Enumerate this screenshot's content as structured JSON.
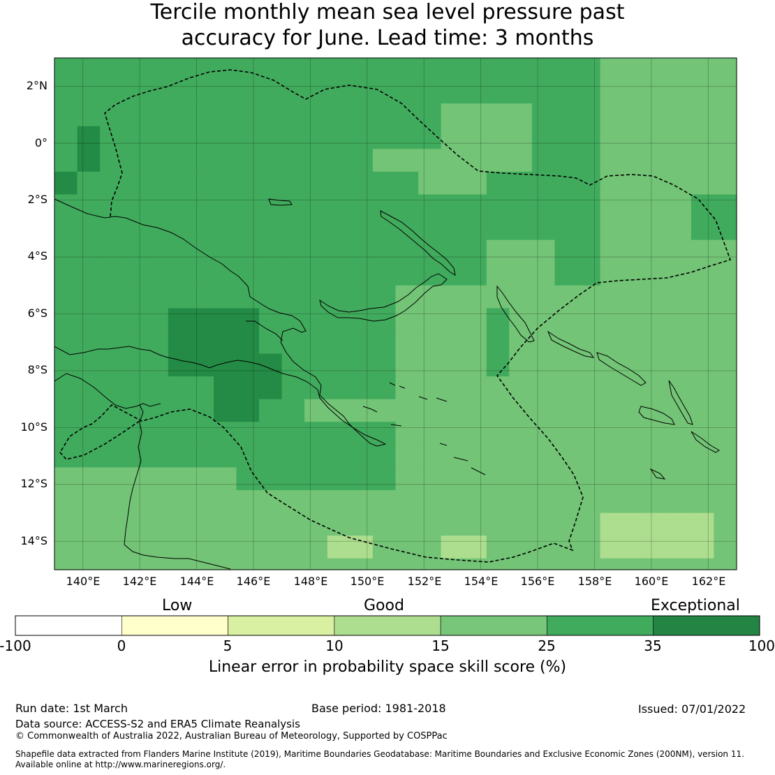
{
  "title": {
    "line1": "Tercile monthly mean sea level pressure past",
    "line2": "accuracy for June. Lead time: 3 months"
  },
  "map": {
    "lat_labels": [
      "2°N",
      "0°",
      "2°S",
      "4°S",
      "6°S",
      "8°S",
      "10°S",
      "12°S",
      "14°S"
    ],
    "lon_labels": [
      "140°E",
      "142°E",
      "144°E",
      "146°E",
      "148°E",
      "150°E",
      "152°E",
      "154°E",
      "156°E",
      "158°E",
      "160°E",
      "162°E"
    ],
    "extent": {
      "lon_min": 139.0,
      "lon_max": 163.0,
      "lat_min": -15.0,
      "lat_max": 3.0
    },
    "grid_resolution_deg": 0.8,
    "category_colors": {
      "c15_25": "#73c476",
      "c25_35": "#41ab5d",
      "c35_100": "#238b45",
      "c10_15": "#addd8e"
    }
  },
  "colorbar": {
    "categories": [
      "Low",
      "Good",
      "Exceptional"
    ],
    "ticks": [
      "-100",
      "0",
      "5",
      "10",
      "15",
      "25",
      "35",
      "100"
    ],
    "colors": [
      "#ffffff",
      "#ffffcc",
      "#d9f0a3",
      "#addd8e",
      "#78c679",
      "#41ab5d",
      "#238443"
    ],
    "label": "Linear error in probability space skill score (%)"
  },
  "footer": {
    "run_date": "Run date: 1st March",
    "base_period": "Base period: 1981-2018",
    "issued": "Issued: 07/01/2022",
    "data_source": "Data source: ACCESS-S2 and ERA5 Climate Reanalysis",
    "copyright": "© Commonwealth of Australia 2022, Australian Bureau of Meteorology, Supported by COSPPac",
    "shapefile_line1": "Shapefile data extracted from Flanders Marine Institute (2019), Maritime Boundaries Geodatabase: Maritime Boundaries and Exclusive Economic Zones (200NM), version 11.",
    "shapefile_line2": "Available online at http://www.marineregions.org/."
  }
}
